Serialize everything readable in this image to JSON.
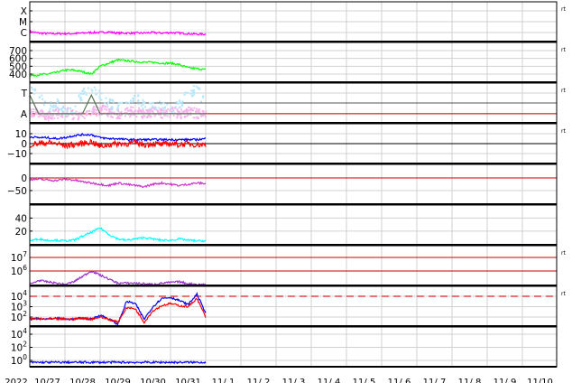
{
  "x_axis": {
    "year_label": "2022",
    "tick_labels": [
      "10/27",
      "10/28",
      "10/29",
      "10/30",
      "10/31",
      "11/ 1",
      "11/ 2",
      "11/ 3",
      "11/ 4",
      "11/ 5",
      "11/ 6",
      "11/ 7",
      "11/ 8",
      "11/ 9",
      "11/10"
    ],
    "range": [
      "10/26 00:00",
      "11/10 24:00"
    ]
  },
  "right_labels": {
    "text": "rt",
    "panels": [
      0,
      1,
      2,
      3,
      6,
      7
    ]
  },
  "colors": {
    "magenta": "#ff00ff",
    "green": "#00ff00",
    "blue": "#0000ff",
    "red": "#ff0000",
    "cyan": "#00ffff",
    "purple": "#9933cc",
    "pink": "#f7b3ee",
    "lightblue": "#b3e6fa",
    "refline": "#cc0000"
  },
  "chart_data": [
    {
      "type": "line",
      "ylim": [
        -6.83,
        -3.17
      ],
      "yscale": "log",
      "ticks": [
        {
          "v": -4,
          "label": "X"
        },
        {
          "v": -5,
          "label": "M"
        },
        {
          "v": -6,
          "label": "C"
        }
      ],
      "times": [
        "10/26 00",
        "10/26 06",
        "10/26 12",
        "10/26 18",
        "10/27 00",
        "10/27 06",
        "10/27 12",
        "10/27 18",
        "10/28 00",
        "10/28 06",
        "10/28 12",
        "10/28 18",
        "10/29 00",
        "10/29 06",
        "10/29 12",
        "10/29 18",
        "10/30 00",
        "10/30 06",
        "10/30 12",
        "10/30 18",
        "10/31 00"
      ],
      "series": [
        {
          "color": "#ff00ff",
          "values": [
            -5.9,
            -6.05,
            -6.1,
            -6.1,
            -6.1,
            -6.1,
            -6.05,
            -6.0,
            -6.0,
            -5.95,
            -6.05,
            -6.05,
            -6.05,
            -6.05,
            -6.0,
            -6.05,
            -6.0,
            -6.05,
            -6.1,
            -6.15,
            -6.15
          ]
        }
      ]
    },
    {
      "type": "line",
      "ylim": [
        296,
        804
      ],
      "ticks": [
        {
          "v": 700,
          "label": "700"
        },
        {
          "v": 600,
          "label": "600"
        },
        {
          "v": 500,
          "label": "500"
        },
        {
          "v": 400,
          "label": "400"
        }
      ],
      "series": [
        {
          "color": "#00ff00",
          "values": [
            380,
            390,
            400,
            420,
            450,
            450,
            430,
            400,
            500,
            540,
            580,
            570,
            560,
            550,
            550,
            540,
            540,
            520,
            480,
            470,
            455
          ]
        }
      ]
    },
    {
      "type": "scatter",
      "ylim": [
        0,
        1
      ],
      "ticks": [
        {
          "v": 0.75,
          "label": "T"
        },
        {
          "v": 0.23,
          "label": "A"
        }
      ],
      "series": [
        {
          "color": "#f7b3ee",
          "values": [
            0.3,
            0.25,
            0.2,
            0.25,
            0.3,
            0.2,
            0.25,
            0.3,
            0.35,
            0.3,
            0.25,
            0.3,
            0.3,
            0.25,
            0.3,
            0.25,
            0.3,
            0.25,
            0.3,
            0.25,
            0.3
          ]
        },
        {
          "color": "#b3e6fa",
          "values": [
            0.8,
            0.75,
            0.4,
            0.5,
            0.3,
            0.4,
            0.8,
            0.85,
            0.7,
            0.5,
            0.4,
            0.5,
            0.7,
            0.4,
            0.5,
            0.4,
            0.35,
            0.5,
            0.8,
            0.85,
            0.4
          ]
        },
        {
          "color": "#557755",
          "values": [
            0.7,
            0.23,
            0.23,
            0.23,
            0.23,
            0.23,
            0.23,
            0.7,
            0.23,
            0.23,
            0.23,
            0.23,
            0.23,
            0.23,
            0.23,
            0.23,
            0.23,
            0.23,
            0.23,
            0.23,
            0.23
          ]
        }
      ],
      "reference_lines": [
        {
          "v": 0.5,
          "color": "#555555"
        },
        {
          "v": 0.23,
          "color": "#cc0000"
        }
      ]
    },
    {
      "type": "line",
      "ylim": [
        -20,
        20
      ],
      "ticks": [
        {
          "v": 10,
          "label": "10"
        },
        {
          "v": 0,
          "label": "0"
        },
        {
          "v": -10,
          "label": "−10"
        }
      ],
      "series": [
        {
          "color": "#0000ff",
          "values": [
            7,
            6,
            6,
            5,
            6,
            8,
            9,
            9,
            6,
            5,
            5,
            4,
            4,
            4,
            4,
            4,
            4,
            4,
            4,
            4,
            5
          ]
        },
        {
          "color": "#ff0000",
          "values": [
            -1,
            0,
            1,
            0,
            -2,
            -1,
            0,
            2,
            -3,
            -1,
            0,
            0,
            1,
            -1,
            0,
            -1,
            0,
            -1,
            0,
            -1,
            -1
          ]
        }
      ],
      "reference_lines": [
        {
          "v": 0,
          "color": "#000000"
        }
      ]
    },
    {
      "type": "line",
      "ylim": [
        -104,
        54
      ],
      "ticks": [
        {
          "v": 0,
          "label": "0"
        },
        {
          "v": -50,
          "label": "−50"
        }
      ],
      "series": [
        {
          "color": "#cc33cc",
          "values": [
            -5,
            -5,
            -8,
            -10,
            -5,
            -8,
            -15,
            -20,
            -25,
            -30,
            -20,
            -25,
            -30,
            -35,
            -25,
            -20,
            -25,
            -30,
            -25,
            -20,
            -22
          ]
        }
      ],
      "reference_lines": [
        {
          "v": 0,
          "color": "#cc0000"
        }
      ]
    },
    {
      "type": "line",
      "ylim": [
        -1,
        60
      ],
      "ticks": [
        {
          "v": 40,
          "label": "40"
        },
        {
          "v": 20,
          "label": "20"
        }
      ],
      "series": [
        {
          "color": "#00ffff",
          "values": [
            5,
            8,
            6,
            6,
            5,
            6,
            12,
            18,
            25,
            15,
            8,
            6,
            8,
            10,
            8,
            6,
            6,
            8,
            6,
            5,
            5
          ]
        }
      ]
    },
    {
      "type": "line",
      "ylim": [
        4.93,
        7.87
      ],
      "yscale": "log",
      "ticks": [
        {
          "v": 7,
          "label": "10",
          "exp": "7"
        },
        {
          "v": 6,
          "label": "10",
          "exp": "6"
        }
      ],
      "series": [
        {
          "color": "#9933cc",
          "values": [
            5.0,
            5.3,
            5.2,
            5.1,
            5.0,
            5.2,
            5.6,
            6.0,
            5.7,
            5.4,
            5.1,
            5.1,
            5.1,
            5.05,
            5.0,
            5.1,
            5.15,
            5.2,
            5.05,
            5.0,
            5.0
          ]
        }
      ],
      "reference_lines": [
        {
          "v": 7,
          "color": "#cc0000"
        },
        {
          "v": 6,
          "color": "#cc0000"
        }
      ]
    },
    {
      "type": "line",
      "ylim": [
        1.13,
        4.96
      ],
      "yscale": "log",
      "ticks": [
        {
          "v": 4,
          "label": "10",
          "exp": "4"
        },
        {
          "v": 3,
          "label": "10",
          "exp": "3"
        },
        {
          "v": 2,
          "label": "10",
          "exp": "2"
        }
      ],
      "series": [
        {
          "color": "#0000ff",
          "values": [
            1.8,
            1.9,
            1.8,
            1.9,
            1.8,
            1.8,
            1.9,
            1.8,
            2.2,
            1.8,
            1.3,
            3.5,
            3.3,
            1.8,
            3.0,
            3.8,
            3.9,
            3.6,
            3.2,
            4.2,
            2.4
          ]
        },
        {
          "color": "#ff0000",
          "values": [
            1.8,
            1.8,
            1.8,
            1.8,
            1.8,
            1.8,
            1.9,
            1.8,
            2.0,
            1.8,
            1.5,
            2.9,
            2.8,
            1.5,
            2.6,
            3.1,
            3.3,
            3.1,
            3.0,
            3.8,
            2.0
          ]
        }
      ],
      "reference_lines": [
        {
          "v": 4,
          "color": "#dd2222",
          "dashed": true
        }
      ]
    },
    {
      "type": "line",
      "ylim": [
        -0.97,
        5.1
      ],
      "yscale": "log",
      "ticks": [
        {
          "v": 4,
          "label": "10",
          "exp": "4"
        },
        {
          "v": 2,
          "label": "10",
          "exp": "2"
        },
        {
          "v": 0,
          "label": "10",
          "exp": "0"
        }
      ],
      "series": [
        {
          "color": "#0000ff",
          "values": [
            -0.3,
            -0.3,
            -0.3,
            -0.3,
            -0.3,
            -0.3,
            -0.3,
            -0.3,
            -0.3,
            -0.3,
            -0.3,
            -0.3,
            -0.3,
            -0.3,
            -0.3,
            -0.3,
            -0.3,
            -0.3,
            -0.3,
            -0.3,
            -0.3
          ]
        }
      ]
    }
  ]
}
